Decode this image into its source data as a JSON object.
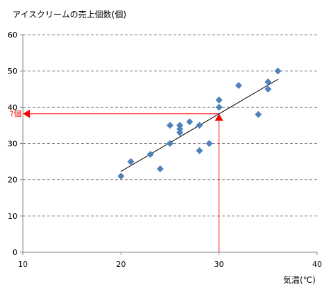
{
  "chart_data": {
    "type": "scatter",
    "title": "アイスクリームの売上個数(個)",
    "xlabel": "気温(℃)",
    "ylabel": "",
    "xlim": [
      10,
      40
    ],
    "ylim": [
      0,
      60
    ],
    "x_ticks": [
      "10",
      "20",
      "30",
      "40"
    ],
    "y_ticks": [
      "0",
      "10",
      "20",
      "30",
      "40",
      "50",
      "60"
    ],
    "grid": "horizontal dashed",
    "marker": "diamond",
    "colors": {
      "points": "#4f81bd",
      "trendline": "#000000",
      "annotation": "#ff0000",
      "grid": "#888888"
    },
    "points": [
      {
        "x": 20,
        "y": 21
      },
      {
        "x": 21,
        "y": 25
      },
      {
        "x": 23,
        "y": 27
      },
      {
        "x": 24,
        "y": 23
      },
      {
        "x": 25,
        "y": 35
      },
      {
        "x": 25,
        "y": 30
      },
      {
        "x": 26,
        "y": 35
      },
      {
        "x": 26,
        "y": 34
      },
      {
        "x": 26,
        "y": 33
      },
      {
        "x": 27,
        "y": 36
      },
      {
        "x": 28,
        "y": 35
      },
      {
        "x": 28,
        "y": 28
      },
      {
        "x": 29,
        "y": 30
      },
      {
        "x": 30,
        "y": 42
      },
      {
        "x": 30,
        "y": 40
      },
      {
        "x": 32,
        "y": 46
      },
      {
        "x": 34,
        "y": 38
      },
      {
        "x": 35,
        "y": 47
      },
      {
        "x": 35,
        "y": 45
      },
      {
        "x": 36,
        "y": 50
      }
    ],
    "trendline": {
      "x": [
        20,
        36
      ],
      "y": [
        22.3,
        47.7
      ]
    },
    "annotation": {
      "label": "?個",
      "x": 30,
      "y": 38.2
    }
  }
}
